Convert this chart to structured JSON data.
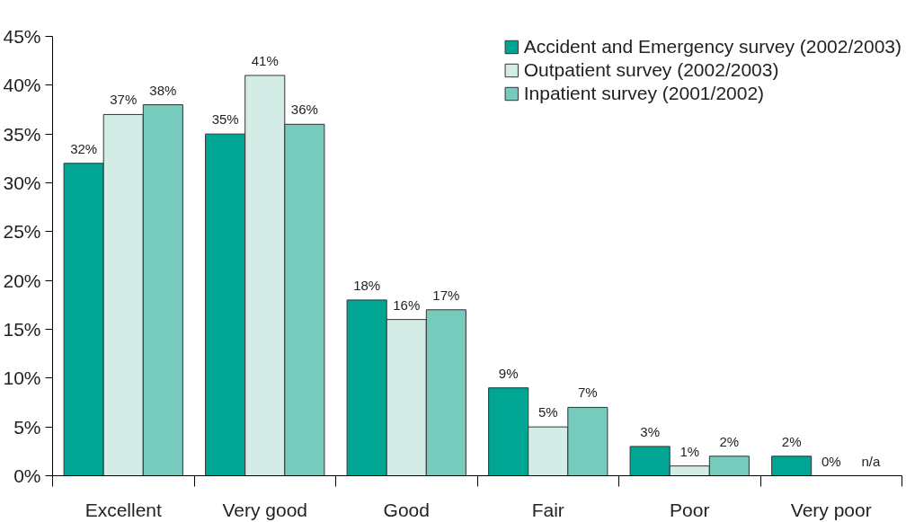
{
  "chart_data": {
    "type": "bar",
    "categories": [
      "Excellent",
      "Very good",
      "Good",
      "Fair",
      "Poor",
      "Very poor"
    ],
    "series": [
      {
        "name": "Accident and Emergency survey (2002/2003)",
        "color": "#00a693",
        "values": [
          32,
          35,
          18,
          9,
          3,
          2
        ],
        "value_labels": [
          "32%",
          "35%",
          "18%",
          "9%",
          "3%",
          "2%"
        ]
      },
      {
        "name": "Outpatient survey (2002/2003)",
        "color": "#d3ece6",
        "values": [
          37,
          41,
          16,
          5,
          1,
          0
        ],
        "value_labels": [
          "37%",
          "41%",
          "16%",
          "5%",
          "1%",
          "0%"
        ]
      },
      {
        "name": "Inpatient survey (2001/2002)",
        "color": "#76cbbd",
        "values": [
          38,
          36,
          17,
          7,
          2,
          null
        ],
        "value_labels": [
          "38%",
          "36%",
          "17%",
          "7%",
          "2%",
          "n/a"
        ]
      }
    ],
    "ylim": [
      0,
      45
    ],
    "yticks": [
      {
        "value": 0,
        "label": "0%"
      },
      {
        "value": 5,
        "label": "5%"
      },
      {
        "value": 10,
        "label": "10%"
      },
      {
        "value": 15,
        "label": "15%"
      },
      {
        "value": 20,
        "label": "20%"
      },
      {
        "value": 25,
        "label": "25%"
      },
      {
        "value": 30,
        "label": "30%"
      },
      {
        "value": 35,
        "label": "35%"
      },
      {
        "value": 40,
        "label": "40%"
      },
      {
        "value": 45,
        "label": "45%"
      }
    ],
    "grid": false,
    "legend": "top right"
  }
}
